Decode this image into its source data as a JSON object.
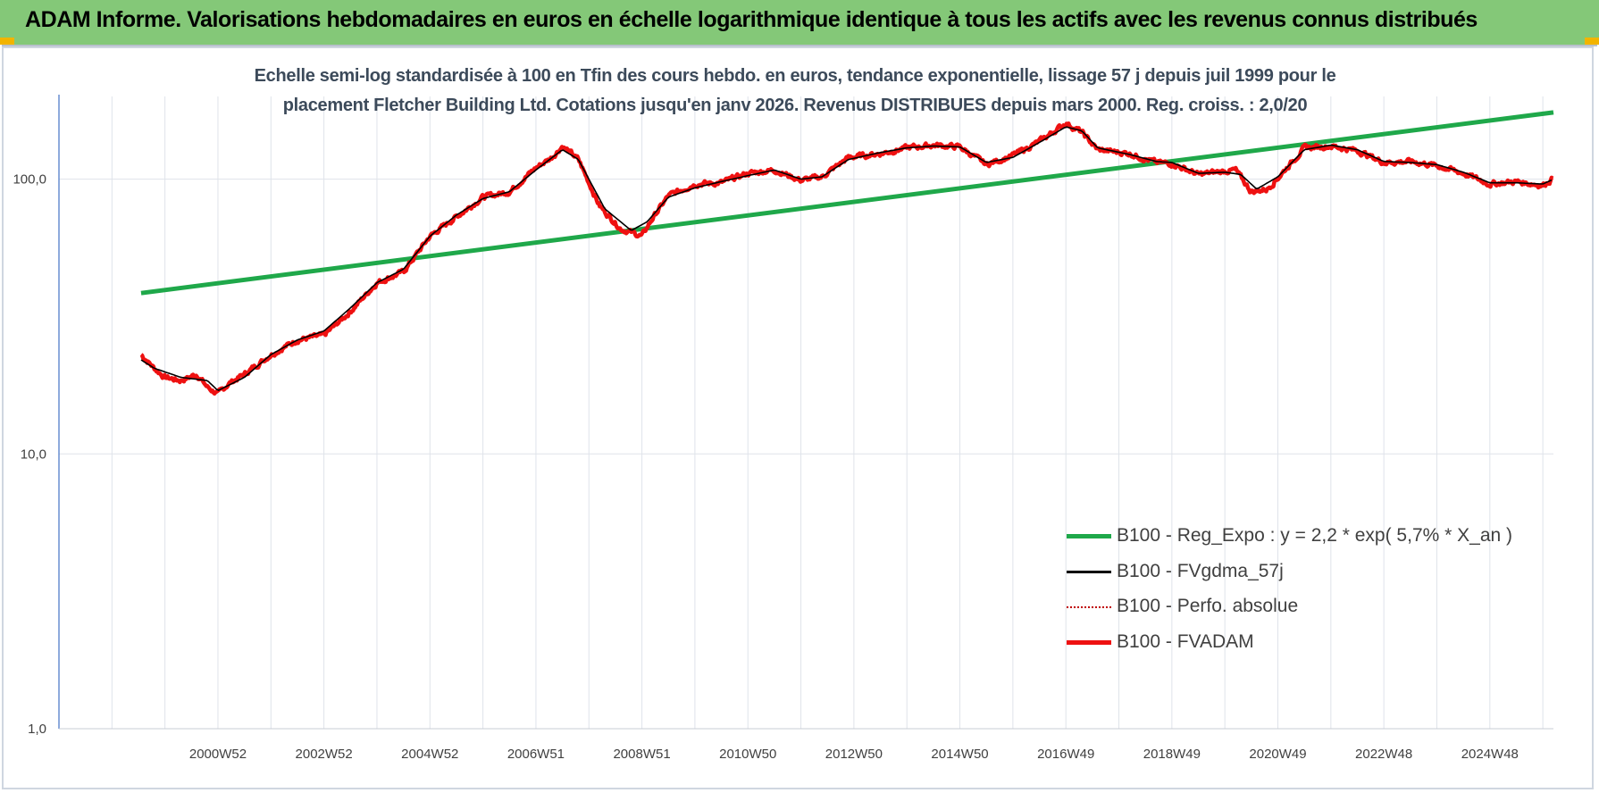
{
  "header": {
    "title": "ADAM Informe. Valorisations hebdomadaires en euros en échelle logarithmique identique à tous les actifs avec les revenus connus distribués"
  },
  "colors": {
    "banner": "#84c878",
    "trend": "#1fa84a",
    "fvadam": "#ee1111",
    "fvgdma": "#000000",
    "perfo": "#c00000",
    "corner": "#f2b400"
  },
  "chart_data": {
    "type": "line",
    "title_line1": "Echelle semi-log standardisée à 100 en Tfin des cours hebdo. en euros, tendance exponentielle, lissage 57 j depuis juil 1999 pour le",
    "title_line2": "placement Fletcher Building Ltd. Cotations jusqu'en janv 2026. Revenus DISTRIBUES depuis mars 2000. Reg. croiss. : 2,0/20",
    "y_scale": "log",
    "ylim": [
      1,
      200
    ],
    "y_ticks": [
      {
        "value": 100,
        "label": "100,0"
      },
      {
        "value": 10,
        "label": "10,0"
      },
      {
        "value": 1,
        "label": "1,0"
      }
    ],
    "x_range": [
      1998.0,
      2026.2
    ],
    "x_ticks": [
      {
        "label": "2000W52",
        "value": 2001.0
      },
      {
        "label": "2002W52",
        "value": 2003.0
      },
      {
        "label": "2004W52",
        "value": 2005.0
      },
      {
        "label": "2006W51",
        "value": 2007.0
      },
      {
        "label": "2008W51",
        "value": 2009.0
      },
      {
        "label": "2010W50",
        "value": 2011.0
      },
      {
        "label": "2012W50",
        "value": 2013.0
      },
      {
        "label": "2014W50",
        "value": 2015.0
      },
      {
        "label": "2016W49",
        "value": 2017.0
      },
      {
        "label": "2018W49",
        "value": 2019.0
      },
      {
        "label": "2020W49",
        "value": 2021.0
      },
      {
        "label": "2022W48",
        "value": 2023.0
      },
      {
        "label": "2024W48",
        "value": 2025.0
      }
    ],
    "grid": true,
    "legend_position": "bottom-right",
    "series": [
      {
        "name": "B100 - Reg_Expo : y = 2,2 * exp( 5,7% *  X_an )",
        "style": "trend",
        "x": [
          1999.55,
          2026.2
        ],
        "y": [
          38.5,
          175
        ]
      },
      {
        "name": "B100 - FVgdma_57j",
        "style": "smooth",
        "x": [
          1999.55,
          1999.8,
          2000.3,
          2000.8,
          2001.0,
          2001.5,
          2002.0,
          2002.5,
          2003.0,
          2003.5,
          2004.0,
          2004.5,
          2005.0,
          2005.5,
          2006.0,
          2006.5,
          2007.0,
          2007.5,
          2007.8,
          2008.3,
          2008.8,
          2009.1,
          2009.5,
          2010.0,
          2010.5,
          2011.0,
          2011.5,
          2012.0,
          2012.4,
          2012.9,
          2013.5,
          2014.0,
          2014.5,
          2015.0,
          2015.5,
          2016.0,
          2016.5,
          2017.0,
          2017.3,
          2017.6,
          2018.2,
          2018.7,
          2019.0,
          2019.5,
          2020.0,
          2020.3,
          2020.6,
          2021.0,
          2021.5,
          2022.0,
          2022.5,
          2023.0,
          2023.5,
          2024.0,
          2024.5,
          2025.0,
          2025.5,
          2026.0,
          2026.2
        ],
        "y": [
          22,
          20.5,
          19,
          18.5,
          17,
          19,
          23,
          26,
          28,
          34,
          42,
          47,
          62,
          74,
          85,
          90,
          108,
          128,
          118,
          78,
          65,
          70,
          86,
          93,
          98,
          103,
          108,
          100,
          102,
          118,
          125,
          130,
          132,
          131,
          115,
          120,
          136,
          155,
          150,
          130,
          123,
          116,
          115,
          105,
          106,
          104,
          92,
          102,
          128,
          133,
          128,
          116,
          115,
          113,
          106,
          97,
          97,
          96,
          100
        ]
      },
      {
        "name": "B100 - Perfo. absolue",
        "style": "dotted",
        "x": [],
        "y": []
      },
      {
        "name": "B100 - FVADAM",
        "style": "main",
        "x": [
          1999.55,
          1999.8,
          2000.0,
          2000.3,
          2000.6,
          2000.8,
          2001.0,
          2001.2,
          2001.5,
          2002.0,
          2002.5,
          2003.0,
          2003.5,
          2004.0,
          2004.5,
          2005.0,
          2005.5,
          2006.0,
          2006.5,
          2007.0,
          2007.3,
          2007.5,
          2007.8,
          2008.2,
          2008.6,
          2009.0,
          2009.2,
          2009.5,
          2010.0,
          2010.5,
          2011.0,
          2011.5,
          2012.0,
          2012.4,
          2012.9,
          2013.5,
          2014.0,
          2014.5,
          2015.0,
          2015.5,
          2016.0,
          2016.5,
          2017.0,
          2017.3,
          2017.6,
          2018.2,
          2018.7,
          2019.0,
          2019.5,
          2020.0,
          2020.2,
          2020.5,
          2020.8,
          2021.0,
          2021.5,
          2022.0,
          2022.5,
          2023.0,
          2023.5,
          2024.0,
          2024.5,
          2025.0,
          2025.5,
          2026.0,
          2026.2
        ],
        "y": [
          23,
          20.5,
          19,
          18.5,
          19.5,
          17.5,
          16.5,
          18,
          19.5,
          23,
          26,
          27,
          33,
          42,
          46,
          62,
          73,
          86,
          90,
          110,
          120,
          132,
          118,
          80,
          66,
          62,
          72,
          87,
          96,
          97,
          105,
          108,
          99,
          102,
          120,
          124,
          130,
          133,
          131,
          113,
          122,
          137,
          160,
          148,
          128,
          124,
          115,
          114,
          104,
          107,
          108,
          90,
          92,
          101,
          130,
          132,
          127,
          115,
          116,
          112,
          105,
          96,
          98,
          95,
          101
        ]
      }
    ]
  }
}
